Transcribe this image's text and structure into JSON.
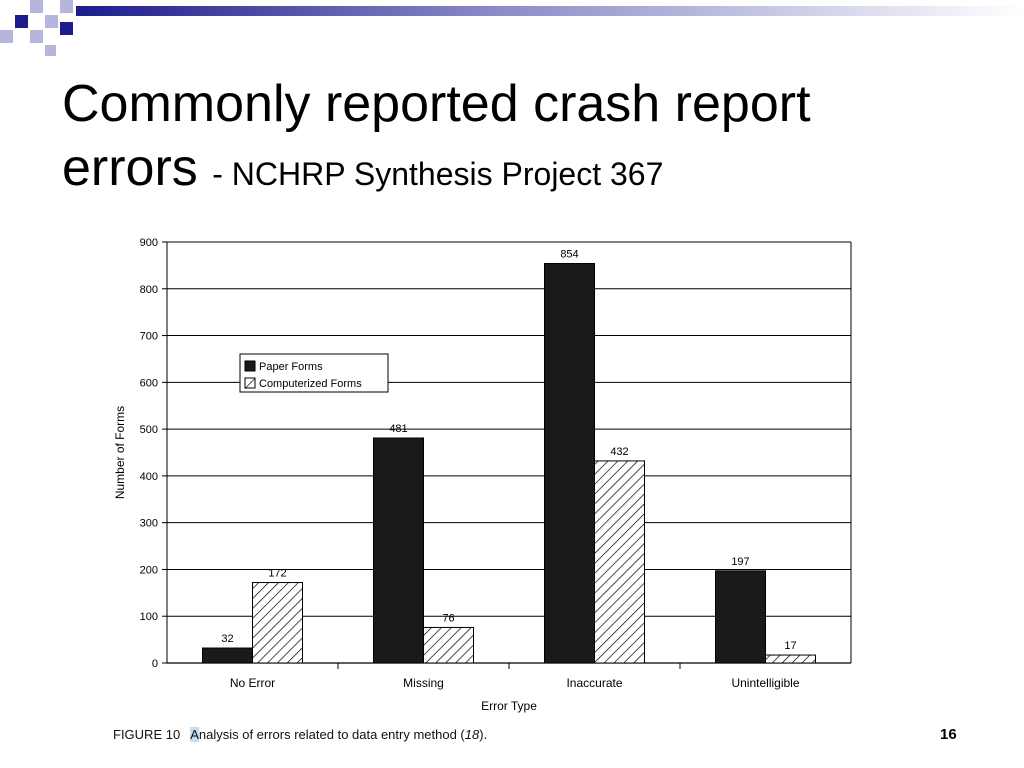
{
  "slide": {
    "title_main_line1": "Commonly reported crash report",
    "title_main_line2": "errors",
    "title_sub": "- NCHRP Synthesis Project 367",
    "slide_number": "16",
    "caption": {
      "label": "FIGURE 10",
      "highlight_letter": "A",
      "text_before": "nalysis of errors related to data entry method (",
      "ref": "18",
      "text_after": ")."
    }
  },
  "colors": {
    "deco_dark": "#1c1c8c",
    "deco_light": "#b6b6dc",
    "paper_bar": "#1a1a1a",
    "grid": "#000000"
  },
  "chart_data": {
    "type": "bar",
    "categories": [
      "No Error",
      "Missing",
      "Inaccurate",
      "Unintelligible"
    ],
    "series": [
      {
        "name": "Paper Forms",
        "values": [
          32,
          481,
          854,
          197
        ],
        "fill": "solid"
      },
      {
        "name": "Computerized Forms",
        "values": [
          172,
          76,
          432,
          17
        ],
        "fill": "hatched"
      }
    ],
    "data_labels": [
      [
        "32",
        "481",
        "854",
        "197"
      ],
      [
        "172",
        "76",
        "432",
        "17"
      ]
    ],
    "xlabel": "Error Type",
    "ylabel": "Number of Forms",
    "ylim": [
      0,
      900
    ],
    "yticks": [
      0,
      100,
      200,
      300,
      400,
      500,
      600,
      700,
      800,
      900
    ],
    "grid": true,
    "legend_position": "upper-left"
  }
}
